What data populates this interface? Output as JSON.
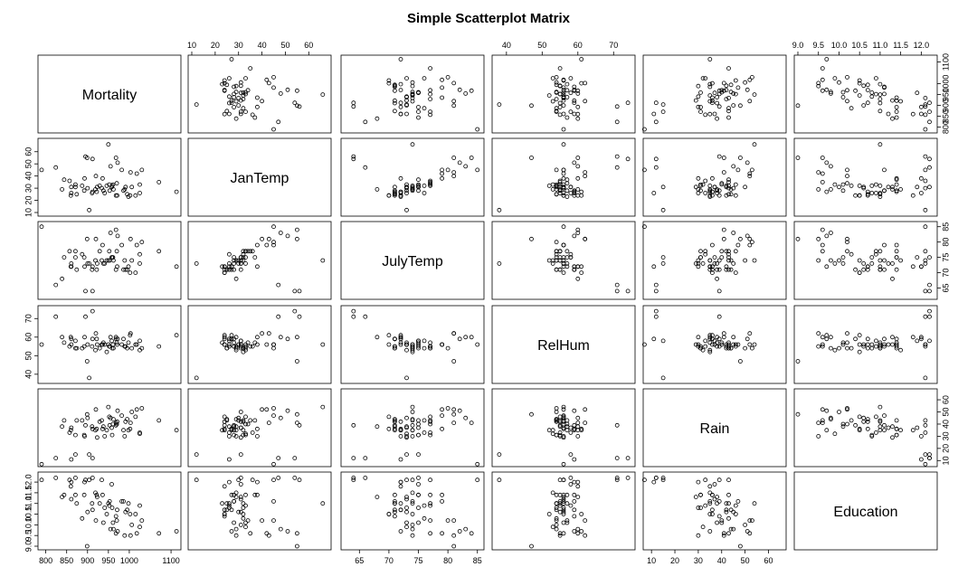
{
  "chart_data": {
    "type": "scatter",
    "title": "Simple Scatterplot Matrix",
    "variables": [
      "Mortality",
      "JanTemp",
      "JulyTemp",
      "RelHum",
      "Rain",
      "Education"
    ],
    "ranges": {
      "Mortality": [
        790,
        1115
      ],
      "JanTemp": [
        10,
        68
      ],
      "JulyTemp": [
        62.5,
        85.5
      ],
      "RelHum": [
        37,
        75
      ],
      "Rain": [
        8,
        66
      ],
      "Education": [
        9.0,
        12.3
      ]
    },
    "ticks": {
      "Mortality": [
        800,
        850,
        900,
        950,
        1000,
        1100
      ],
      "JanTemp": [
        10,
        20,
        30,
        40,
        50,
        60
      ],
      "JulyTemp": [
        65,
        70,
        75,
        80,
        85
      ],
      "RelHum": [
        40,
        50,
        60,
        70
      ],
      "Rain": [
        10,
        20,
        30,
        40,
        50,
        60
      ],
      "Education": [
        9.0,
        9.5,
        10.0,
        10.5,
        11.0,
        11.5,
        12.0
      ]
    },
    "tick_labels": {
      "Mortality": [
        "800",
        "850",
        "900",
        "950",
        "1000",
        "1100"
      ],
      "JanTemp": [
        "10",
        "20",
        "30",
        "40",
        "50",
        "60"
      ],
      "JulyTemp": [
        "65",
        "70",
        "75",
        "80",
        "85"
      ],
      "RelHum": [
        "40",
        "50",
        "60",
        "70"
      ],
      "Rain": [
        "10",
        "20",
        "30",
        "40",
        "50",
        "60"
      ],
      "Education": [
        "9.0",
        "9.5",
        "10.0",
        "10.5",
        "11.0",
        "11.5",
        "12.0"
      ]
    },
    "grid": false,
    "records": [
      [
        922,
        27,
        71,
        59,
        36,
        11.4
      ],
      [
        998,
        23,
        72,
        57,
        35,
        11.0
      ],
      [
        962,
        29,
        74,
        54,
        44,
        9.8
      ],
      [
        982,
        45,
        79,
        56,
        47,
        11.1
      ],
      [
        1071,
        35,
        77,
        55,
        43,
        9.6
      ],
      [
        1030,
        45,
        80,
        54,
        53,
        10.2
      ],
      [
        934,
        30,
        74,
        56,
        43,
        12.1
      ],
      [
        900,
        30,
        73,
        56,
        45,
        10.6
      ],
      [
        1002,
        24,
        70,
        61,
        36,
        10.5
      ],
      [
        912,
        27,
        72,
        59,
        36,
        10.7
      ],
      [
        1018,
        42,
        79,
        56,
        52,
        9.6
      ],
      [
        1025,
        26,
        76,
        58,
        33,
        10.9
      ],
      [
        970,
        34,
        77,
        57,
        40,
        10.2
      ],
      [
        986,
        28,
        71,
        59,
        35,
        11.1
      ],
      [
        958,
        31,
        75,
        58,
        37,
        11.9
      ],
      [
        860,
        24,
        72,
        60,
        35,
        11.8
      ],
      [
        936,
        38,
        79,
        56,
        36,
        11.4
      ],
      [
        871,
        31,
        75,
        58,
        15,
        12.2
      ],
      [
        959,
        32,
        75,
        54,
        31,
        10.8
      ],
      [
        941,
        26,
        73,
        56,
        30,
        10.8
      ],
      [
        892,
        28,
        75,
        55,
        31,
        11.4
      ],
      [
        871,
        33,
        77,
        54,
        31,
        11.4
      ],
      [
        971,
        24,
        72,
        56,
        42,
        10.7
      ],
      [
        887,
        32,
        76,
        54,
        43,
        10.3
      ],
      [
        952,
        33,
        77,
        55,
        46,
        10.9
      ],
      [
        968,
        24,
        71,
        59,
        39,
        10.4
      ],
      [
        919,
        29,
        74,
        53,
        35,
        11.5
      ],
      [
        844,
        37,
        75,
        57,
        43,
        11.4
      ],
      [
        861,
        26,
        72,
        59,
        11,
        12.0
      ],
      [
        989,
        29,
        74,
        55,
        30,
        9.5
      ],
      [
        1006,
        31,
        74,
        54,
        50,
        10.0
      ],
      [
        861,
        31,
        73,
        56,
        37,
        11.2
      ],
      [
        929,
        32,
        77,
        54,
        42,
        11.0
      ],
      [
        857,
        36,
        77,
        55,
        33,
        12.1
      ],
      [
        961,
        33,
        75,
        56,
        40,
        10.1
      ],
      [
        923,
        31,
        73,
        56,
        29,
        11.3
      ],
      [
        1113,
        27,
        72,
        61,
        35,
        9.7
      ],
      [
        995,
        25,
        71,
        54,
        44,
        10.7
      ],
      [
        1015,
        24,
        70,
        56,
        46,
        10.5
      ],
      [
        991,
        31,
        71,
        55,
        42,
        10.6
      ],
      [
        893,
        38,
        72,
        60,
        30,
        12.0
      ],
      [
        938,
        28,
        73,
        57,
        38,
        10.1
      ],
      [
        946,
        32,
        74,
        52,
        35,
        10.5
      ],
      [
        1025,
        33,
        73,
        53,
        32,
        9.9
      ],
      [
        874,
        25,
        71,
        54,
        43,
        11.0
      ],
      [
        953,
        28,
        74,
        55,
        39,
        11.1
      ],
      [
        839,
        29,
        68,
        60,
        38,
        11.3
      ],
      [
        911,
        26,
        71,
        55,
        38,
        11.0
      ],
      [
        790,
        45,
        85,
        56,
        7,
        12.1
      ],
      [
        899,
        55,
        81,
        47,
        48,
        9.0
      ],
      [
        904,
        12,
        73,
        38,
        15,
        12.1
      ],
      [
        950,
        66,
        74,
        56,
        54,
        11.0
      ],
      [
        972,
        51,
        82,
        59,
        51,
        9.7
      ],
      [
        912,
        54,
        64,
        74,
        12,
        12.2
      ],
      [
        968,
        55,
        84,
        60,
        41,
        9.6
      ],
      [
        824,
        47,
        66,
        71,
        12,
        12.2
      ],
      [
        1003,
        43,
        81,
        62,
        41,
        9.5
      ],
      [
        895,
        56,
        64,
        71,
        39,
        12.1
      ],
      [
        955,
        48,
        83,
        60,
        45,
        9.8
      ],
      [
        920,
        40,
        81,
        62,
        52,
        10.2
      ]
    ]
  }
}
